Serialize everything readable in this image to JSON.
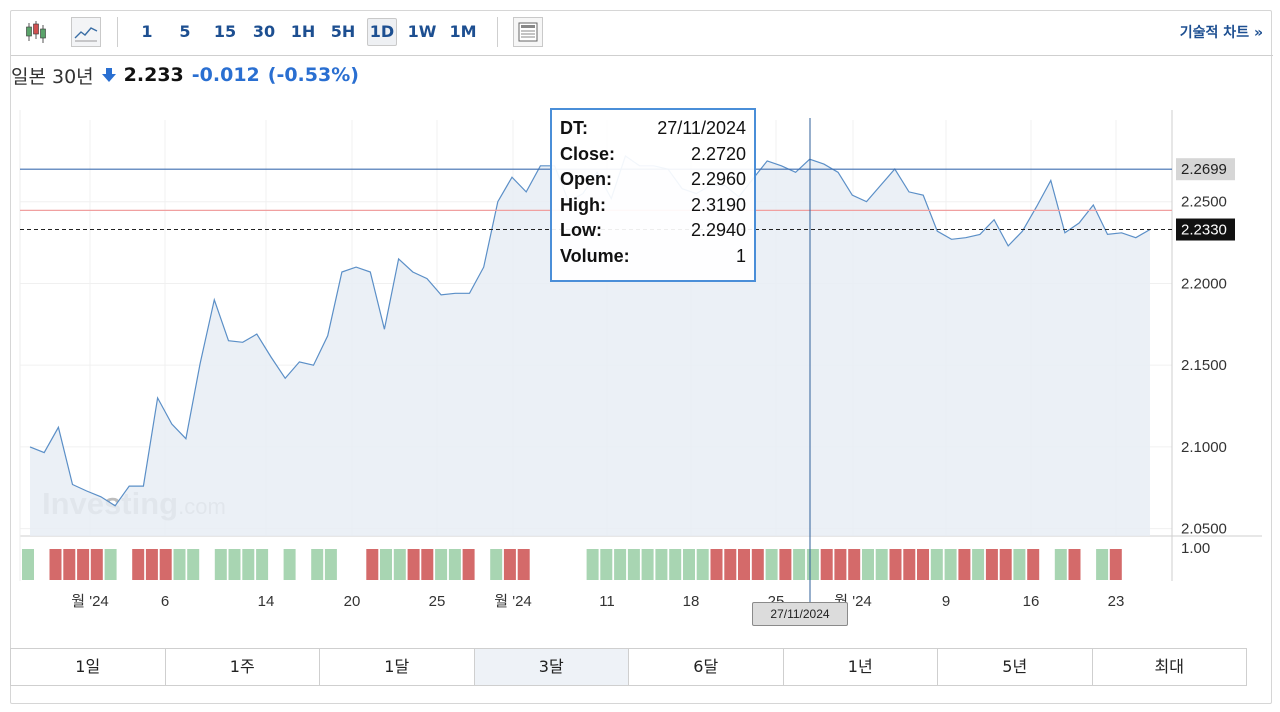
{
  "toolbar": {
    "intervals": [
      "1",
      "5",
      "15",
      "30",
      "1H",
      "5H",
      "1D",
      "1W",
      "1M"
    ],
    "active_interval": "1D",
    "tech_chart_label": "기술적 차트 »"
  },
  "quote": {
    "name": "일본 30년",
    "direction": "down",
    "price": "2.233",
    "change": "-0.012",
    "change_pct": "(-0.53%)"
  },
  "tooltip": {
    "rows": [
      {
        "key": "DT:",
        "value": "27/11/2024"
      },
      {
        "key": "Close:",
        "value": "2.2720"
      },
      {
        "key": "Open:",
        "value": "2.2960"
      },
      {
        "key": "High:",
        "value": "2.3190"
      },
      {
        "key": "Low:",
        "value": "2.2940"
      },
      {
        "key": "Volume:",
        "value": "1"
      }
    ]
  },
  "crosshair_date": "27/11/2024",
  "range_buttons": [
    "1일",
    "1주",
    "1달",
    "3달",
    "6달",
    "1년",
    "5년",
    "최대"
  ],
  "active_range": "3달",
  "colors": {
    "line": "#5b8fc7",
    "area": "#e8edf4",
    "up_volume": "#a8d5b2",
    "down_volume": "#d46a6a",
    "link": "#1d4f91",
    "change": "#2a6fd1"
  },
  "watermark": "Investing.com",
  "chart_data": {
    "type": "area",
    "y_ticks": [
      "2.2500",
      "2.2000",
      "2.1500",
      "2.1000",
      "2.0500"
    ],
    "y_tick_values": [
      2.25,
      2.2,
      2.15,
      2.1,
      2.05
    ],
    "ylim": [
      2.0455,
      2.3
    ],
    "markers": [
      {
        "label": "2.2699",
        "value": 2.2699,
        "style": "blue-line"
      },
      {
        "label": "2.2330",
        "value": 2.233,
        "style": "dashed-current"
      },
      {
        "value": 2.2447,
        "style": "red-line"
      }
    ],
    "x_tick_labels": [
      "월 '24",
      "6",
      "14",
      "20",
      "25",
      "월 '24",
      "11",
      "18",
      "25",
      "월 '24",
      "9",
      "16",
      "23"
    ],
    "volume_tick": "1.00",
    "values": [
      2.1,
      2.0965,
      2.112,
      2.077,
      2.073,
      2.0695,
      2.064,
      2.076,
      2.076,
      2.13,
      2.114,
      2.105,
      2.151,
      2.19,
      2.165,
      2.164,
      2.169,
      2.155,
      2.142,
      2.152,
      2.15,
      2.168,
      2.207,
      2.21,
      2.207,
      2.172,
      2.215,
      2.207,
      2.203,
      2.193,
      2.194,
      2.194,
      2.21,
      2.25,
      2.265,
      2.256,
      2.272,
      2.272,
      2.25,
      2.255,
      2.268,
      2.252,
      2.278,
      2.272,
      2.272,
      2.2699,
      2.258,
      2.255,
      2.26,
      2.26,
      2.253,
      2.264,
      2.275,
      2.272,
      2.268,
      2.276,
      2.273,
      2.268,
      2.254,
      2.25,
      2.26,
      2.27,
      2.256,
      2.254,
      2.232,
      2.227,
      2.228,
      2.23,
      2.239,
      2.223,
      2.232,
      2.247,
      2.263,
      2.231,
      2.237,
      2.248,
      2.23,
      2.231,
      2.228,
      2.233
    ],
    "volume_bars": [
      "u",
      "u",
      "d",
      "d",
      "d",
      "d",
      "u",
      "u",
      "d",
      "d",
      "d",
      "u",
      "u",
      "u",
      "u",
      "u",
      "u",
      "u",
      "u",
      "u",
      "u",
      "u",
      "u",
      "u",
      "u",
      "d",
      "u",
      "u",
      "d",
      "d",
      "u",
      "u",
      "d",
      "u",
      "u",
      "d",
      "d",
      "d",
      "u",
      "d",
      "u",
      "u",
      "u",
      "u",
      "u",
      "u",
      "u",
      "u",
      "u",
      "u",
      "d",
      "d",
      "d",
      "d",
      "u",
      "d",
      "u",
      "u",
      "d",
      "d",
      "d",
      "u",
      "u",
      "d",
      "d",
      "d",
      "u",
      "u",
      "d",
      "u",
      "d",
      "d",
      "u",
      "d",
      "u",
      "u",
      "d",
      "d",
      "u",
      "d"
    ],
    "volume_visible": [
      1,
      0,
      1,
      1,
      1,
      1,
      1,
      0,
      1,
      1,
      1,
      1,
      1,
      0,
      1,
      1,
      1,
      1,
      0,
      1,
      0,
      1,
      1,
      0,
      0,
      1,
      1,
      1,
      1,
      1,
      1,
      1,
      1,
      0,
      1,
      1,
      1,
      0,
      0,
      0,
      0,
      1,
      1,
      1,
      1,
      1,
      1,
      1,
      1,
      1,
      1,
      1,
      1,
      1,
      1,
      1,
      1,
      1,
      1,
      1,
      1,
      1,
      1,
      1,
      1,
      1,
      1,
      1,
      1,
      1,
      1,
      1,
      1,
      1,
      0,
      1,
      1,
      0,
      1,
      1
    ]
  }
}
